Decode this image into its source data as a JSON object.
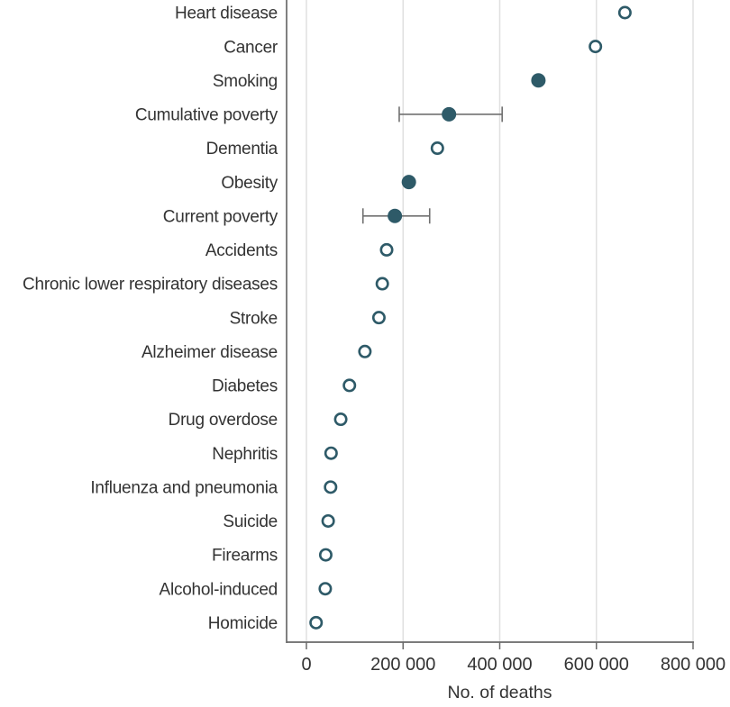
{
  "chart_data": {
    "type": "scatter",
    "variant": "horizontal-dot-plot",
    "title": "",
    "xlabel": "No. of deaths",
    "ylabel": "",
    "xlim": [
      0,
      800000
    ],
    "xticks": [
      0,
      200000,
      400000,
      600000,
      800000
    ],
    "xtick_labels": [
      "0",
      "200 000",
      "400 000",
      "600 000",
      "800 000"
    ],
    "grid": "vertical-gridlines-at-xticks",
    "legend": "none",
    "categories": [
      "Heart disease",
      "Cancer",
      "Smoking",
      "Cumulative poverty",
      "Dementia",
      "Obesity",
      "Current poverty",
      "Accidents",
      "Chronic lower respiratory diseases",
      "Stroke",
      "Alzheimer disease",
      "Diabetes",
      "Drug overdose",
      "Nephritis",
      "Influenza and pneumonia",
      "Suicide",
      "Firearms",
      "Alcohol-induced",
      "Homicide"
    ],
    "points": [
      {
        "label": "Heart disease",
        "value": 659000,
        "marker": "open"
      },
      {
        "label": "Cancer",
        "value": 598000,
        "marker": "open"
      },
      {
        "label": "Smoking",
        "value": 480000,
        "marker": "filled"
      },
      {
        "label": "Cumulative poverty",
        "value": 295000,
        "marker": "filled",
        "ci_low": 192000,
        "ci_high": 405000
      },
      {
        "label": "Dementia",
        "value": 271000,
        "marker": "open"
      },
      {
        "label": "Obesity",
        "value": 212000,
        "marker": "filled"
      },
      {
        "label": "Current poverty",
        "value": 183000,
        "marker": "filled",
        "ci_low": 117000,
        "ci_high": 255000
      },
      {
        "label": "Accidents",
        "value": 166000,
        "marker": "open"
      },
      {
        "label": "Chronic lower respiratory diseases",
        "value": 157000,
        "marker": "open"
      },
      {
        "label": "Stroke",
        "value": 150000,
        "marker": "open"
      },
      {
        "label": "Alzheimer disease",
        "value": 121000,
        "marker": "open"
      },
      {
        "label": "Diabetes",
        "value": 89000,
        "marker": "open"
      },
      {
        "label": "Drug overdose",
        "value": 71000,
        "marker": "open"
      },
      {
        "label": "Nephritis",
        "value": 51000,
        "marker": "open"
      },
      {
        "label": "Influenza and pneumonia",
        "value": 50000,
        "marker": "open"
      },
      {
        "label": "Suicide",
        "value": 45000,
        "marker": "open"
      },
      {
        "label": "Firearms",
        "value": 40000,
        "marker": "open"
      },
      {
        "label": "Alcohol-induced",
        "value": 39000,
        "marker": "open"
      },
      {
        "label": "Homicide",
        "value": 20000,
        "marker": "open"
      }
    ],
    "colors": {
      "marker": "#2e5a68",
      "marker_open_fill": "#ffffff",
      "error_bar": "#707070",
      "gridline": "#e0e0e0",
      "axis": "#6a6a6a",
      "text": "#333333"
    }
  }
}
